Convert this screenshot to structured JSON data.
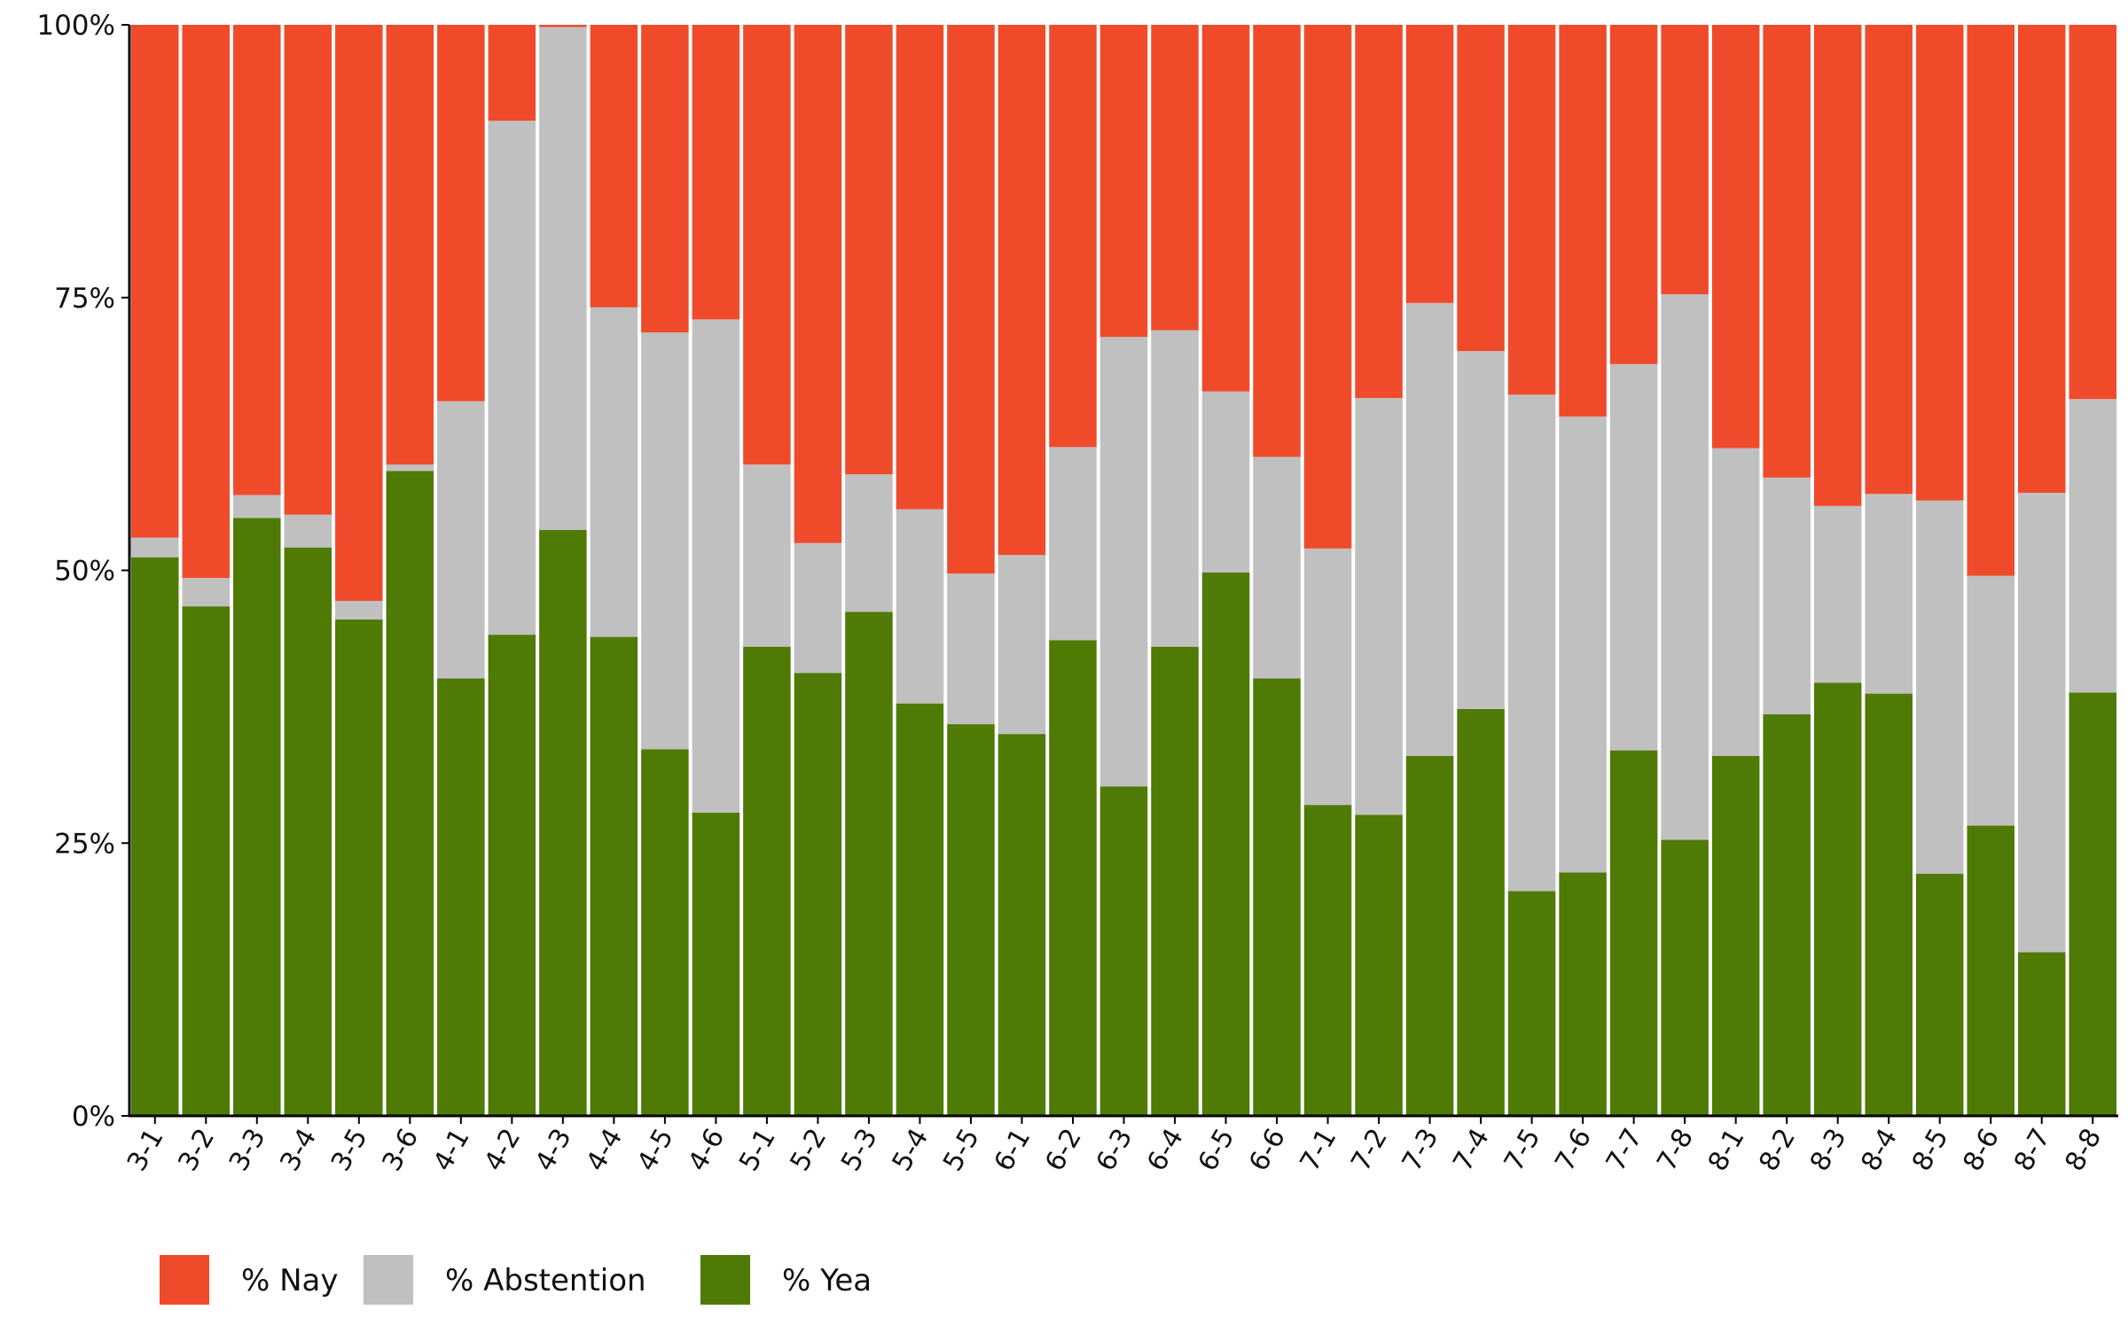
{
  "chart_data": {
    "type": "bar",
    "stacked": true,
    "normalized_percent": true,
    "categories": [
      "3-1",
      "3-2",
      "3-3",
      "3-4",
      "3-5",
      "3-6",
      "4-1",
      "4-2",
      "4-3",
      "4-4",
      "4-5",
      "4-6",
      "5-1",
      "5-2",
      "5-3",
      "5-4",
      "5-5",
      "6-1",
      "6-2",
      "6-3",
      "6-4",
      "6-5",
      "6-6",
      "7-1",
      "7-2",
      "7-3",
      "7-4",
      "7-5",
      "7-6",
      "7-7",
      "7-8",
      "8-1",
      "8-2",
      "8-3",
      "8-4",
      "8-5",
      "8-6",
      "8-7",
      "8-8"
    ],
    "series": [
      {
        "name": "% Yea",
        "color": "#4e7a05",
        "values": [
          51.2,
          46.7,
          54.8,
          52.1,
          45.5,
          59.1,
          40.1,
          44.1,
          53.7,
          43.9,
          33.6,
          27.8,
          43.0,
          40.6,
          46.2,
          37.8,
          35.9,
          35.0,
          43.6,
          30.2,
          43.0,
          49.8,
          40.1,
          28.5,
          27.6,
          33.0,
          37.3,
          20.6,
          22.3,
          33.5,
          25.3,
          33.0,
          36.8,
          39.7,
          38.7,
          22.2,
          26.6,
          15.0,
          38.8
        ]
      },
      {
        "name": "% Abstention",
        "color": "#c0c0c0",
        "values": [
          1.8,
          2.6,
          2.1,
          3.0,
          1.7,
          0.6,
          25.4,
          47.1,
          46.1,
          30.2,
          38.2,
          45.2,
          16.7,
          11.9,
          12.6,
          17.8,
          13.8,
          16.4,
          17.7,
          41.2,
          29.0,
          16.6,
          20.3,
          23.5,
          38.2,
          41.5,
          32.8,
          45.5,
          41.8,
          35.4,
          50.0,
          28.2,
          21.7,
          16.2,
          18.3,
          34.2,
          22.9,
          42.1,
          26.9
        ]
      },
      {
        "name": "% Nay",
        "color": "#ef4b2b",
        "values": [
          47.0,
          50.7,
          43.1,
          44.9,
          52.8,
          40.3,
          34.5,
          8.8,
          0.2,
          25.9,
          28.2,
          27.0,
          40.3,
          47.5,
          41.2,
          44.4,
          50.3,
          48.6,
          38.7,
          28.6,
          28.0,
          33.6,
          39.6,
          48.0,
          34.2,
          25.5,
          29.9,
          33.9,
          35.9,
          31.1,
          24.7,
          38.8,
          41.5,
          44.1,
          43.0,
          43.6,
          50.5,
          42.9,
          34.3
        ]
      }
    ],
    "y_ticks": [
      "0%",
      "25%",
      "50%",
      "75%",
      "100%"
    ],
    "ylim": [
      0,
      100
    ],
    "xlabel": "",
    "ylabel": "",
    "title": "",
    "grid": false,
    "legend": {
      "position": "bottom-left",
      "entries": [
        "% Nay",
        "% Abstention",
        "% Yea"
      ],
      "colors": [
        "#ef4b2b",
        "#c0c0c0",
        "#4e7a05"
      ]
    }
  }
}
